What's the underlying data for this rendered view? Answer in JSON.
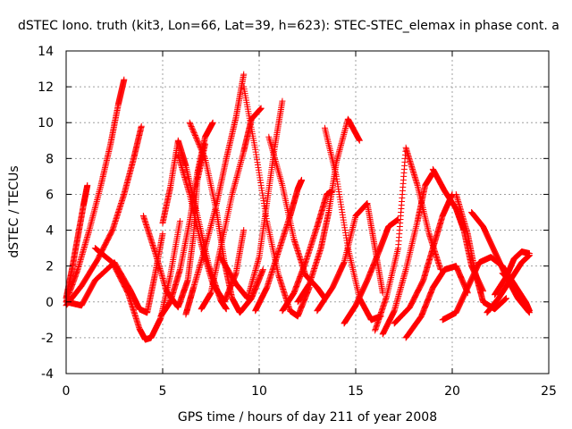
{
  "chart_data": {
    "type": "scatter",
    "title": "dSTEC Iono. truth (kit3, Lon=66, Lat=39, h=623): STEC-STEC_elemax in phase cont. a",
    "xlabel": "GPS time / hours of day 211 of year 2008",
    "ylabel": "dSTEC  / TECUs",
    "xlim": [
      0,
      25
    ],
    "ylim": [
      -4,
      14
    ],
    "xticks": [
      0,
      5,
      10,
      15,
      20,
      25
    ],
    "yticks": [
      -4,
      -2,
      0,
      2,
      4,
      6,
      8,
      10,
      12,
      14
    ],
    "grid": true,
    "marker": "+",
    "color": "#ff0000",
    "arcs": [
      {
        "x": [
          0.0,
          0.3,
          0.6,
          0.9,
          1.1
        ],
        "y": [
          0.2,
          1.8,
          3.6,
          5.4,
          6.5
        ]
      },
      {
        "x": [
          0.0,
          0.6,
          1.2,
          1.8,
          2.3,
          2.7,
          3.0
        ],
        "y": [
          0.0,
          1.8,
          4.0,
          6.5,
          8.8,
          11.0,
          12.4
        ]
      },
      {
        "x": [
          0.0,
          0.8,
          1.6,
          2.4,
          3.0,
          3.5,
          3.9
        ],
        "y": [
          -0.2,
          0.9,
          2.3,
          4.0,
          6.0,
          8.0,
          9.8
        ]
      },
      {
        "x": [
          0.0,
          0.8,
          1.5,
          2.5,
          3.3,
          3.8,
          4.2,
          4.6,
          5.0
        ],
        "y": [
          0.0,
          -0.2,
          1.2,
          2.2,
          0.7,
          -0.4,
          -0.6,
          1.5,
          3.8
        ]
      },
      {
        "x": [
          1.5,
          2.4,
          3.2,
          3.8,
          4.1,
          4.4,
          4.9,
          5.4,
          5.9
        ],
        "y": [
          3.0,
          2.2,
          0.5,
          -1.5,
          -2.1,
          -2.0,
          -0.9,
          1.5,
          4.5
        ]
      },
      {
        "x": [
          4.0,
          4.6,
          5.2,
          5.8,
          6.3,
          6.6,
          6.8,
          7.2
        ],
        "y": [
          4.8,
          2.8,
          0.6,
          -0.3,
          1.2,
          3.7,
          6.8,
          8.8
        ]
      },
      {
        "x": [
          4.9,
          5.4,
          5.9,
          6.4,
          6.8,
          7.2,
          7.6
        ],
        "y": [
          -0.8,
          0.0,
          1.8,
          4.5,
          7.2,
          9.2,
          10.0
        ]
      },
      {
        "x": [
          5.0,
          5.4,
          5.8,
          6.2,
          6.8,
          7.4,
          8.0,
          8.3
        ],
        "y": [
          4.4,
          6.4,
          9.0,
          7.6,
          4.8,
          2.0,
          0.1,
          -0.4
        ]
      },
      {
        "x": [
          5.8,
          6.4,
          7.0,
          7.6,
          8.2,
          8.8,
          9.2
        ],
        "y": [
          8.2,
          6.0,
          3.2,
          1.0,
          0.0,
          1.6,
          4.0
        ]
      },
      {
        "x": [
          6.2,
          6.6,
          7.2,
          7.8,
          8.3,
          8.8,
          9.2
        ],
        "y": [
          -0.7,
          0.8,
          3.0,
          5.5,
          8.0,
          10.3,
          12.7
        ]
      },
      {
        "x": [
          6.4,
          7.2,
          7.8,
          8.2,
          8.6,
          9.0,
          9.6,
          10.2
        ],
        "y": [
          10.0,
          8.0,
          5.0,
          2.2,
          0.2,
          -0.6,
          0.2,
          1.8
        ]
      },
      {
        "x": [
          7.0,
          7.5,
          8.0,
          8.6,
          9.2,
          9.6,
          10.1
        ],
        "y": [
          -0.4,
          0.5,
          3.0,
          6.0,
          8.4,
          10.2,
          10.8
        ]
      },
      {
        "x": [
          8.0,
          8.8,
          9.4,
          10.0,
          10.4,
          10.8,
          11.2
        ],
        "y": [
          2.5,
          1.0,
          0.2,
          2.5,
          5.5,
          8.6,
          11.2
        ]
      },
      {
        "x": [
          9.2,
          9.8,
          10.4,
          11.0,
          11.6,
          12.0,
          12.6
        ],
        "y": [
          12.0,
          8.5,
          4.5,
          1.5,
          -0.5,
          -0.8,
          0.8
        ]
      },
      {
        "x": [
          9.8,
          10.4,
          11.0,
          11.6,
          12.0,
          12.2
        ],
        "y": [
          -0.5,
          0.8,
          2.8,
          4.8,
          6.3,
          6.8
        ]
      },
      {
        "x": [
          10.5,
          11.2,
          11.8,
          12.4,
          13.0,
          13.4
        ],
        "y": [
          9.2,
          6.5,
          3.5,
          1.5,
          0.8,
          0.2
        ]
      },
      {
        "x": [
          11.2,
          11.8,
          12.4,
          13.0,
          13.5,
          13.8
        ],
        "y": [
          -0.5,
          0.5,
          2.2,
          4.2,
          6.0,
          6.2
        ]
      },
      {
        "x": [
          12.0,
          12.6,
          13.2,
          13.6,
          14.0,
          14.6,
          15.2
        ],
        "y": [
          0.0,
          1.0,
          3.0,
          5.0,
          7.8,
          10.2,
          9.0
        ]
      },
      {
        "x": [
          13.4,
          14.0,
          14.6,
          15.2,
          15.8,
          16.3
        ],
        "y": [
          9.7,
          7.0,
          3.0,
          0.2,
          -1.0,
          -0.8
        ]
      },
      {
        "x": [
          13.0,
          13.8,
          14.4,
          15.0,
          15.6,
          16.0,
          16.4
        ],
        "y": [
          -0.5,
          0.8,
          2.2,
          4.8,
          5.5,
          3.0,
          0.5
        ]
      },
      {
        "x": [
          14.4,
          15.0,
          15.6,
          16.2,
          16.7,
          17.2
        ],
        "y": [
          -1.2,
          -0.2,
          1.2,
          2.8,
          4.2,
          4.6
        ]
      },
      {
        "x": [
          16.0,
          16.6,
          17.2,
          17.6,
          18.2,
          18.8,
          19.4
        ],
        "y": [
          -1.6,
          0.3,
          3.0,
          8.6,
          6.5,
          3.8,
          1.8
        ]
      },
      {
        "x": [
          16.4,
          17.0,
          17.6,
          18.2,
          18.6,
          19.0
        ],
        "y": [
          -1.8,
          -0.5,
          1.8,
          4.5,
          6.5,
          7.2
        ]
      },
      {
        "x": [
          17.0,
          17.8,
          18.5,
          19.0,
          19.5,
          20.0
        ],
        "y": [
          -1.2,
          -0.3,
          1.2,
          3.0,
          4.8,
          6.0
        ]
      },
      {
        "x": [
          17.6,
          18.4,
          19.0,
          19.6,
          20.2,
          20.8
        ],
        "y": [
          -2.0,
          -0.8,
          0.8,
          1.8,
          2.0,
          0.5
        ]
      },
      {
        "x": [
          19.0,
          19.6,
          20.2,
          20.6,
          21.0,
          21.6
        ],
        "y": [
          7.4,
          6.2,
          5.2,
          4.0,
          2.0,
          0.6
        ]
      },
      {
        "x": [
          19.5,
          20.2,
          20.8,
          21.4,
          22.0,
          22.6,
          23.2
        ],
        "y": [
          -1.0,
          -0.6,
          0.8,
          2.2,
          2.5,
          2.0,
          1.0
        ]
      },
      {
        "x": [
          20.2,
          20.8,
          21.2,
          21.6,
          22.2,
          22.8
        ],
        "y": [
          6.0,
          3.8,
          1.6,
          0.0,
          -0.4,
          0.2
        ]
      },
      {
        "x": [
          21.0,
          21.6,
          22.2,
          22.8,
          23.4,
          24.0
        ],
        "y": [
          5.0,
          4.2,
          2.8,
          1.4,
          0.2,
          -0.6
        ]
      },
      {
        "x": [
          21.8,
          22.4,
          23.0,
          23.6,
          24.0
        ],
        "y": [
          -0.6,
          0.2,
          1.2,
          2.2,
          2.6
        ]
      },
      {
        "x": [
          22.2,
          22.8,
          23.2,
          23.6,
          24.0
        ],
        "y": [
          0.4,
          1.4,
          2.4,
          2.8,
          2.7
        ]
      },
      {
        "x": [
          22.6,
          23.2,
          23.8,
          24.0
        ],
        "y": [
          1.6,
          1.0,
          0.0,
          -0.5
        ]
      }
    ]
  }
}
